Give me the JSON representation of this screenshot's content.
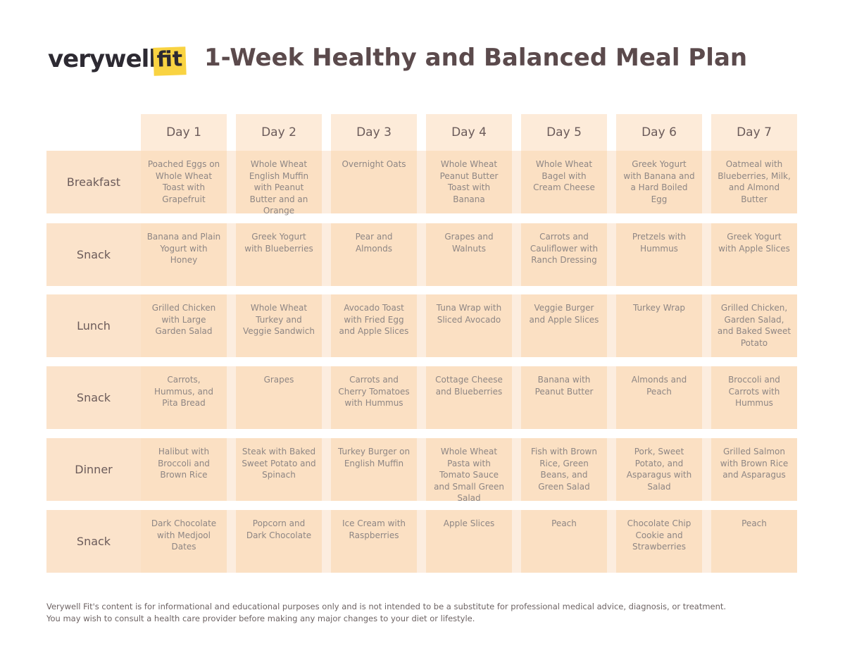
{
  "header": {
    "logo": {
      "word": "verywell",
      "badge": "fit"
    },
    "title": "1-Week Healthy and Balanced Meal Plan"
  },
  "table": {
    "columns": [
      "Day 1",
      "Day 2",
      "Day 3",
      "Day 4",
      "Day 5",
      "Day 6",
      "Day 7"
    ],
    "rows": [
      {
        "label": "Breakfast",
        "cells": [
          "Poached Eggs on Whole Wheat Toast with Grapefruit",
          "Whole Wheat English Muffin with Peanut Butter and an Orange",
          "Overnight Oats",
          "Whole Wheat Peanut Butter Toast with Banana",
          "Whole Wheat Bagel with Cream Cheese",
          "Greek Yogurt with Banana and a Hard Boiled Egg",
          "Oatmeal with Blueberries, Milk, and Almond Butter"
        ]
      },
      {
        "label": "Snack",
        "cells": [
          "Banana and Plain Yogurt with Honey",
          "Greek Yogurt with Blueberries",
          "Pear and Almonds",
          "Grapes and Walnuts",
          "Carrots and Cauliflower with Ranch Dressing",
          "Pretzels with Hummus",
          "Greek Yogurt with Apple Slices"
        ]
      },
      {
        "label": "Lunch",
        "cells": [
          "Grilled Chicken with Large Garden Salad",
          "Whole Wheat Turkey and Veggie Sandwich",
          "Avocado Toast with Fried Egg and Apple Slices",
          "Tuna Wrap with Sliced Avocado",
          "Veggie Burger and Apple Slices",
          "Turkey Wrap",
          "Grilled Chicken, Garden Salad, and Baked Sweet Potato"
        ]
      },
      {
        "label": "Snack",
        "cells": [
          "Carrots, Hummus, and Pita Bread",
          "Grapes",
          "Carrots and Cherry Tomatoes with Hummus",
          "Cottage Cheese and Blueberries",
          "Banana with Peanut Butter",
          "Almonds and Peach",
          "Broccoli and Carrots with Hummus"
        ]
      },
      {
        "label": "Dinner",
        "cells": [
          "Halibut with Broccoli and Brown Rice",
          "Steak with Baked Sweet Potato and Spinach",
          "Turkey Burger on English Muffin",
          "Whole Wheat Pasta with Tomato Sauce and Small Green Salad",
          "Fish with Brown Rice, Green Beans, and Green Salad",
          "Pork, Sweet Potato, and Asparagus with Salad",
          "Grilled Salmon with Brown Rice and Asparagus"
        ]
      },
      {
        "label": "Snack",
        "cells": [
          "Dark Chocolate with Medjool Dates",
          "Popcorn and Dark Chocolate",
          "Ice Cream with Raspberries",
          "Apple Slices",
          "Peach",
          "Chocolate Chip Cookie and Strawberries",
          "Peach"
        ]
      }
    ]
  },
  "footer": {
    "lines": [
      "Verywell Fit's content is for informational and educational purposes only and is not intended to be a substitute for professional medical advice, diagnosis, or treatment.",
      "You may wish to consult a health care provider before making any major changes to your diet or lifestyle."
    ]
  }
}
